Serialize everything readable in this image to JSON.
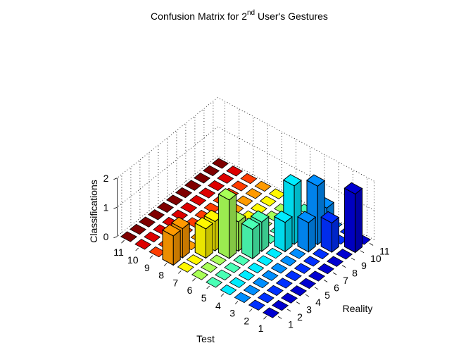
{
  "chart_data": {
    "type": "bar3",
    "title_main": "Confusion Matrix for 2",
    "title_sup": "nd",
    "title_rest": " User's Gestures",
    "xlabel": "Test",
    "ylabel": "Reality",
    "zlabel": "Classifications",
    "x_ticks": [
      "1",
      "2",
      "3",
      "4",
      "5",
      "6",
      "7",
      "8",
      "9",
      "10",
      "11"
    ],
    "y_ticks": [
      "1",
      "2",
      "3",
      "4",
      "5",
      "6",
      "7",
      "8",
      "9",
      "10",
      "11"
    ],
    "z_ticks": [
      "0",
      "1",
      "2"
    ],
    "zlim": [
      0,
      2
    ],
    "colormap": "jet",
    "grid": true,
    "bars": [
      {
        "test": 1,
        "reality": 10,
        "value": 2
      },
      {
        "test": 2,
        "reality": 9,
        "value": 1
      },
      {
        "test": 2,
        "reality": 10,
        "value": 0
      },
      {
        "test": 3,
        "reality": 8,
        "value": 1
      },
      {
        "test": 3,
        "reality": 9,
        "value": 2
      },
      {
        "test": 3,
        "reality": 10,
        "value": 1
      },
      {
        "test": 4,
        "reality": 7,
        "value": 1
      },
      {
        "test": 4,
        "reality": 8,
        "value": 2
      },
      {
        "test": 5,
        "reality": 5,
        "value": 1
      },
      {
        "test": 5,
        "reality": 6,
        "value": 1
      },
      {
        "test": 6,
        "reality": 4,
        "value": 2
      },
      {
        "test": 6,
        "reality": 5,
        "value": 1
      },
      {
        "test": 7,
        "reality": 4,
        "value": 1
      },
      {
        "test": 7,
        "reality": 3,
        "value": 1
      },
      {
        "test": 8,
        "reality": 2,
        "value": 1
      },
      {
        "test": 8,
        "reality": 1,
        "value": 1
      }
    ]
  }
}
